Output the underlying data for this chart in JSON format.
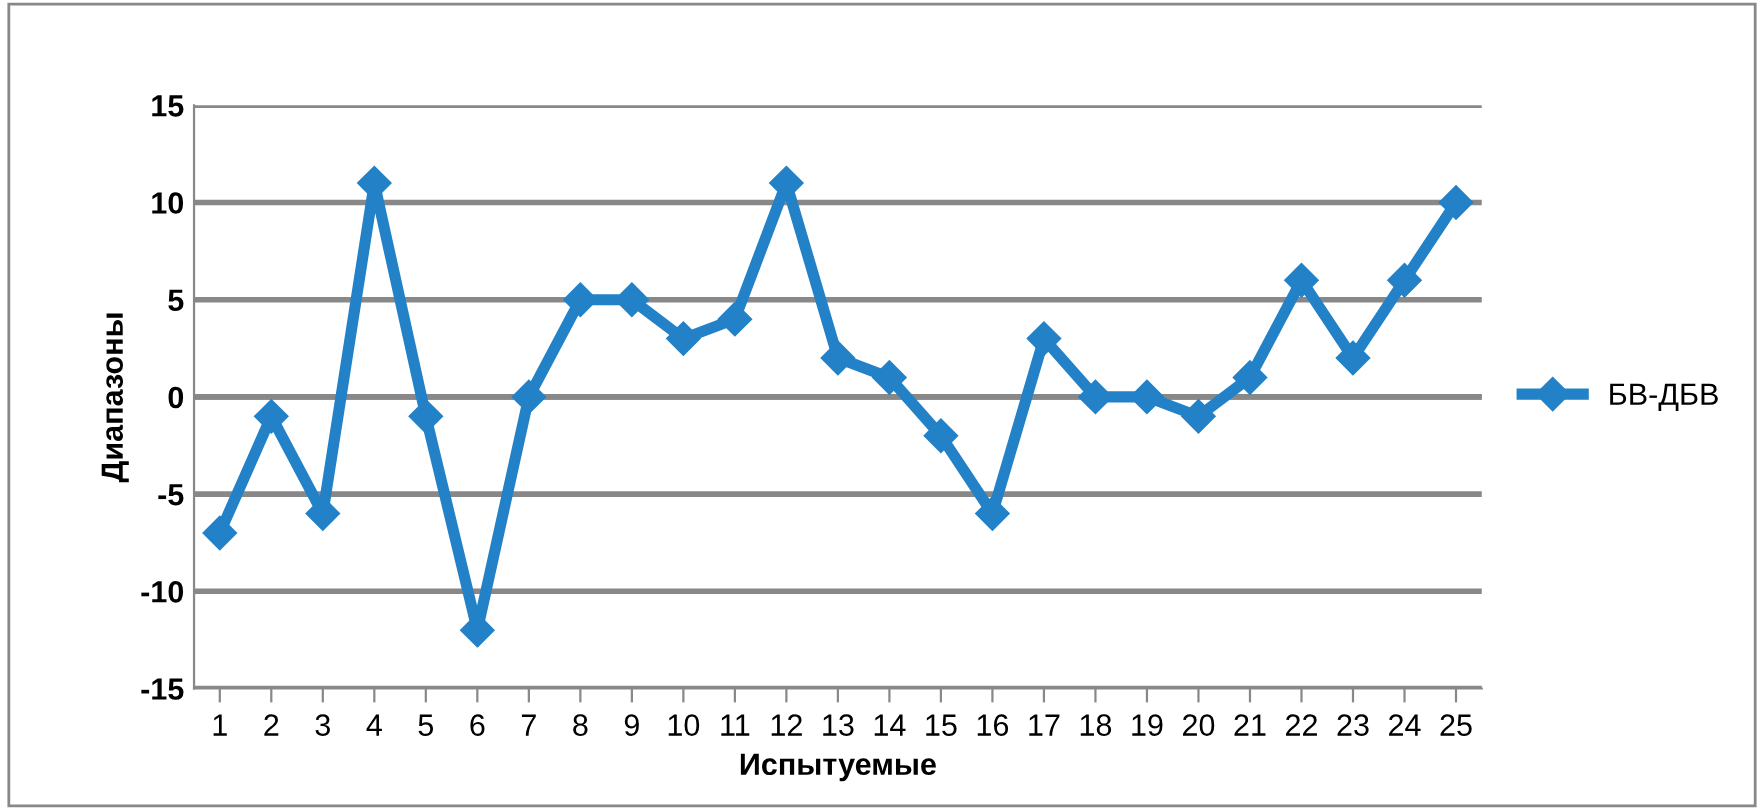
{
  "chart_data": {
    "type": "line",
    "xlabel": "Испытуемые",
    "ylabel": "Диапазоны",
    "categories": [
      "1",
      "2",
      "3",
      "4",
      "5",
      "6",
      "7",
      "8",
      "9",
      "10",
      "11",
      "12",
      "13",
      "14",
      "15",
      "16",
      "17",
      "18",
      "19",
      "20",
      "21",
      "22",
      "23",
      "24",
      "25"
    ],
    "series": [
      {
        "name": "БВ-ДБВ",
        "color": "#2381c8",
        "values": [
          -7,
          -1,
          -6,
          11,
          -1,
          -12,
          0,
          5,
          5,
          3,
          4,
          11,
          2,
          1,
          -2,
          -6,
          3,
          0,
          0,
          -1,
          1,
          6,
          2,
          6,
          10
        ]
      }
    ],
    "ylim": [
      -15,
      15
    ],
    "yticks": [
      -15,
      -10,
      -5,
      0,
      5,
      10,
      15
    ],
    "grid": "y",
    "legend": "right",
    "marker": "diamond",
    "line_style": "solid"
  }
}
